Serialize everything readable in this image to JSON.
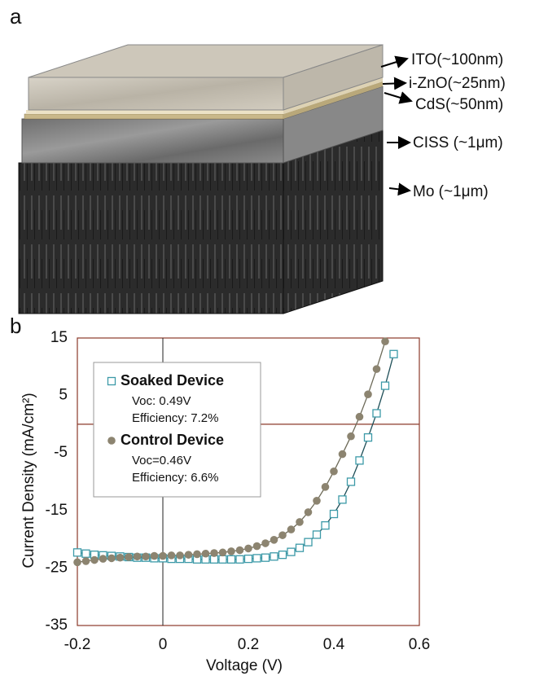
{
  "panel_a": {
    "label": "a",
    "layers": [
      "ITO(~100nm)",
      "i-ZnO(~25nm)",
      "CdS(~50nm)",
      "CISS (~1μm)",
      "Mo (~1μm)"
    ]
  },
  "chart_data": {
    "type": "line",
    "label": "b",
    "x_label": "Voltage (V)",
    "y_label": "Current Density (mA/cm²)",
    "x": [
      -0.2,
      -0.18,
      -0.16,
      -0.14,
      -0.12,
      -0.1,
      -0.08,
      -0.06,
      -0.04,
      -0.02,
      0,
      0.02,
      0.04,
      0.06,
      0.08,
      0.1,
      0.12,
      0.14,
      0.16,
      0.18,
      0.2,
      0.22,
      0.24,
      0.26,
      0.28,
      0.3,
      0.32,
      0.34,
      0.36,
      0.38,
      0.4,
      0.42,
      0.44,
      0.46,
      0.48,
      0.5,
      0.52,
      0.54
    ],
    "series": [
      {
        "name": "Soaked Device",
        "marker": "square",
        "color": "#3d9aa8",
        "line_color": "#1f4f58",
        "notes": [
          "Voc: 0.49V",
          "Efficiency: 7.2%"
        ],
        "values": [
          -22.3,
          -22.5,
          -22.7,
          -22.8,
          -22.9,
          -23.0,
          -23.1,
          -23.2,
          -23.2,
          -23.3,
          -23.3,
          -23.4,
          -23.4,
          -23.4,
          -23.5,
          -23.5,
          -23.5,
          -23.5,
          -23.5,
          -23.5,
          -23.4,
          -23.3,
          -23.2,
          -23.0,
          -22.7,
          -22.2,
          -21.5,
          -20.5,
          -19.2,
          -17.6,
          -15.6,
          -13.1,
          -10.0,
          -6.3,
          -2.3,
          1.9,
          6.7,
          12.2
        ]
      },
      {
        "name": "Control Device",
        "marker": "circle",
        "color": "#8c8470",
        "line_color": "#6d6a58",
        "notes": [
          "Voc=0.46V",
          "Efficiency: 6.6%"
        ],
        "values": [
          -24.0,
          -23.8,
          -23.6,
          -23.4,
          -23.3,
          -23.2,
          -23.1,
          -23.0,
          -23.0,
          -22.9,
          -22.9,
          -22.8,
          -22.8,
          -22.7,
          -22.6,
          -22.5,
          -22.4,
          -22.3,
          -22.1,
          -21.9,
          -21.6,
          -21.2,
          -20.7,
          -20.1,
          -19.3,
          -18.3,
          -17.0,
          -15.3,
          -13.3,
          -10.9,
          -8.2,
          -5.2,
          -2.1,
          1.3,
          5.2,
          9.6,
          14.4,
          null
        ]
      }
    ],
    "xlim": [
      -0.2,
      0.6
    ],
    "xticks": [
      -0.2,
      0,
      0.2,
      0.4,
      0.6
    ],
    "ylim": [
      -35,
      15
    ],
    "yticks": [
      15,
      5,
      -5,
      -15,
      -25,
      -35
    ],
    "grid": false,
    "origin_lines": true,
    "frame_color": "#8b3a2a"
  }
}
